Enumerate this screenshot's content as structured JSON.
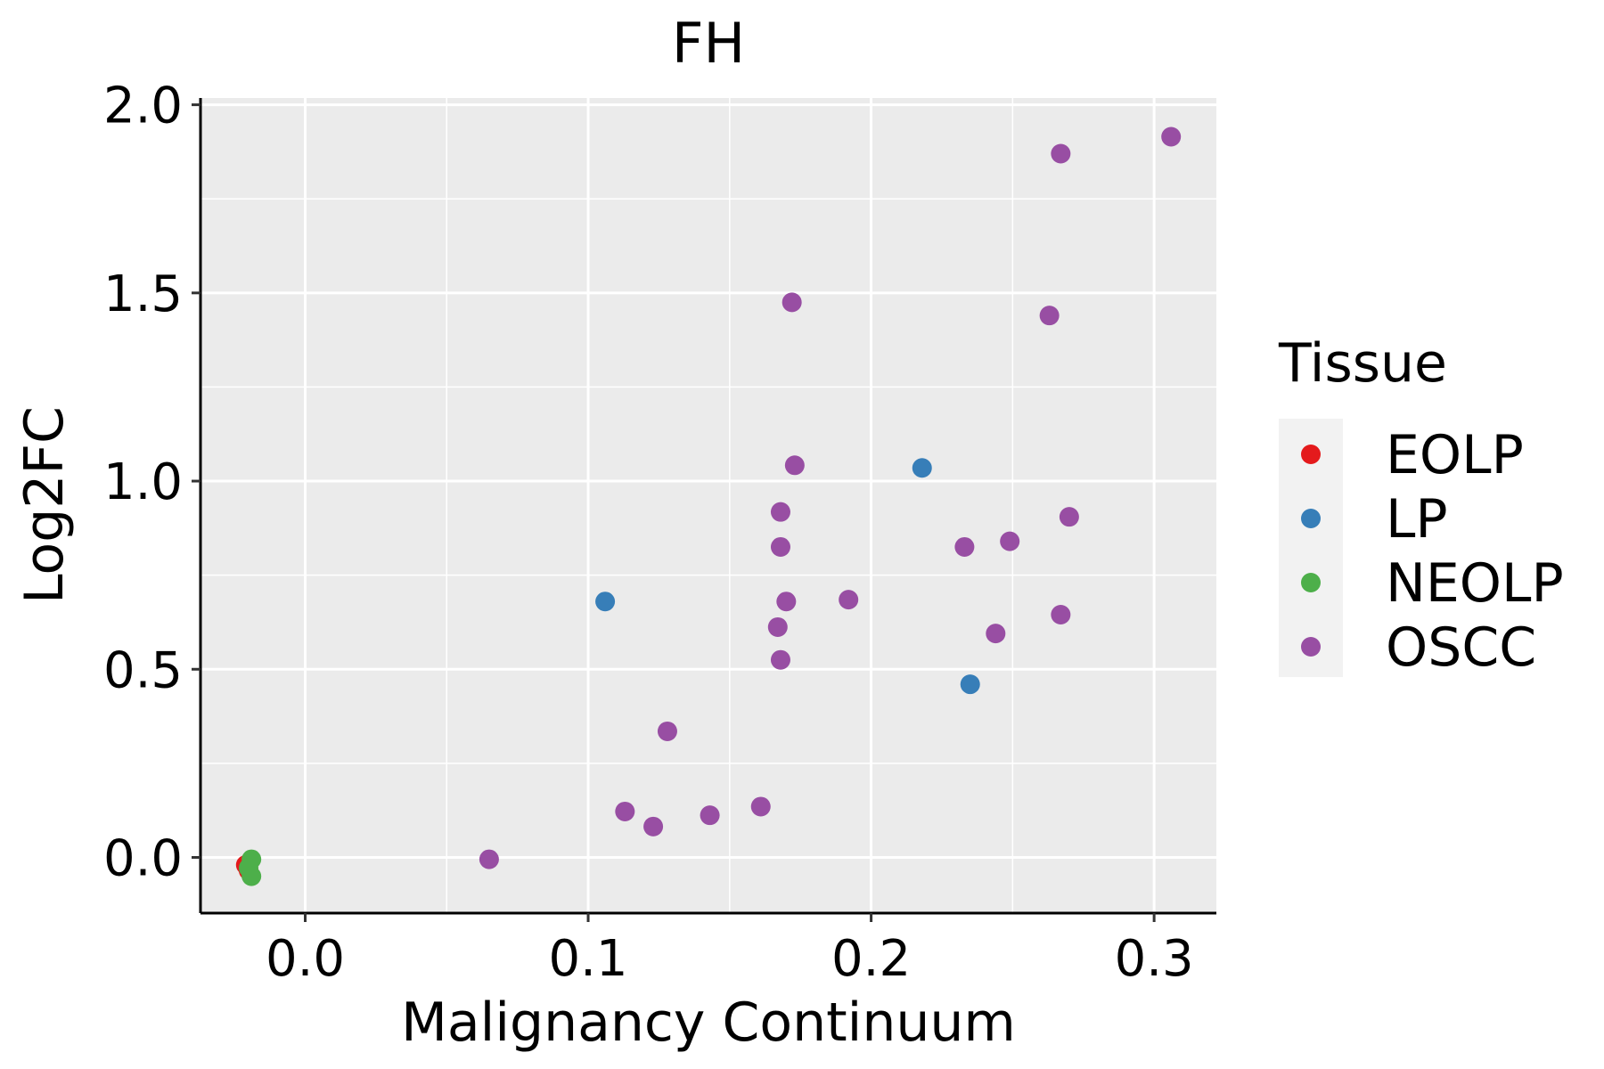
{
  "chart_data": {
    "type": "scatter",
    "title": "FH",
    "xlabel": "Malignancy Continuum",
    "ylabel": "Log2FC",
    "xlim": [
      -0.037,
      0.322
    ],
    "ylim": [
      -0.148,
      2.018
    ],
    "x_ticks": [
      0.0,
      0.1,
      0.2,
      0.3
    ],
    "x_tick_labels": [
      "0.0",
      "0.1",
      "0.2",
      "0.3"
    ],
    "y_ticks": [
      0.0,
      0.5,
      1.0,
      1.5,
      2.0
    ],
    "y_tick_labels": [
      "0.0",
      "0.5",
      "1.0",
      "1.5",
      "2.0"
    ],
    "grid": true,
    "legend": {
      "title": "Tissue",
      "position": "right",
      "entries": [
        {
          "label": "EOLP",
          "color": "#E41A1C"
        },
        {
          "label": "LP",
          "color": "#377EB8"
        },
        {
          "label": "NEOLP",
          "color": "#4DAF4A"
        },
        {
          "label": "OSCC",
          "color": "#984EA3"
        }
      ]
    },
    "series": [
      {
        "name": "EOLP",
        "color": "#E41A1C",
        "points": [
          {
            "x": -0.021,
            "y": -0.02
          },
          {
            "x": -0.02,
            "y": -0.035
          }
        ]
      },
      {
        "name": "LP",
        "color": "#377EB8",
        "points": [
          {
            "x": 0.106,
            "y": 0.68
          },
          {
            "x": 0.218,
            "y": 1.035
          },
          {
            "x": 0.235,
            "y": 0.46
          }
        ]
      },
      {
        "name": "NEOLP",
        "color": "#4DAF4A",
        "points": [
          {
            "x": -0.019,
            "y": -0.005
          },
          {
            "x": -0.02,
            "y": -0.028
          },
          {
            "x": -0.019,
            "y": -0.05
          }
        ]
      },
      {
        "name": "OSCC",
        "color": "#984EA3",
        "points": [
          {
            "x": 0.065,
            "y": -0.005
          },
          {
            "x": 0.113,
            "y": 0.122
          },
          {
            "x": 0.123,
            "y": 0.082
          },
          {
            "x": 0.128,
            "y": 0.335
          },
          {
            "x": 0.143,
            "y": 0.112
          },
          {
            "x": 0.161,
            "y": 0.135
          },
          {
            "x": 0.167,
            "y": 0.612
          },
          {
            "x": 0.168,
            "y": 0.918
          },
          {
            "x": 0.168,
            "y": 0.825
          },
          {
            "x": 0.168,
            "y": 0.525
          },
          {
            "x": 0.17,
            "y": 0.68
          },
          {
            "x": 0.172,
            "y": 1.475
          },
          {
            "x": 0.173,
            "y": 1.042
          },
          {
            "x": 0.192,
            "y": 0.685
          },
          {
            "x": 0.233,
            "y": 0.825
          },
          {
            "x": 0.244,
            "y": 0.595
          },
          {
            "x": 0.249,
            "y": 0.84
          },
          {
            "x": 0.263,
            "y": 1.44
          },
          {
            "x": 0.267,
            "y": 1.87
          },
          {
            "x": 0.267,
            "y": 0.645
          },
          {
            "x": 0.27,
            "y": 0.905
          },
          {
            "x": 0.306,
            "y": 1.915
          }
        ]
      }
    ]
  }
}
